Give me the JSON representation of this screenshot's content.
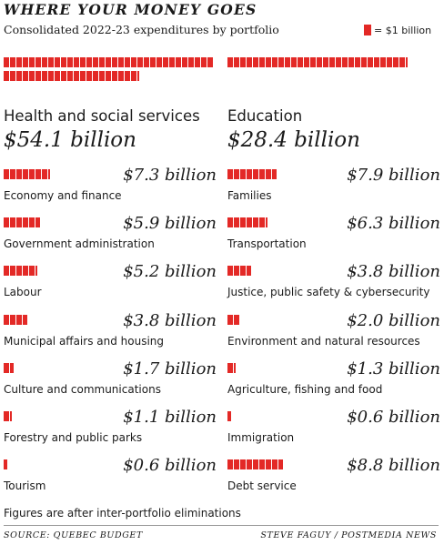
{
  "header": {
    "title": "WHERE YOUR MONEY GOES",
    "subtitle": "Consolidated 2022-23 expenditures by portfolio",
    "legend_label": "= $1 billion",
    "legend_color": "#e32926"
  },
  "chart_data": {
    "type": "bar",
    "unit": "$1 billion",
    "bar_color": "#e32926",
    "categories": [
      "Health and social services",
      "Education",
      "Economy and finance",
      "Families",
      "Government administration",
      "Transportation",
      "Labour",
      "Justice, public safety & cybersecurity",
      "Municipal affairs and housing",
      "Environment and natural resources",
      "Culture and communications",
      "Agriculture, fishing and food",
      "Forestry and public parks",
      "Immigration",
      "Tourism",
      "Debt service"
    ],
    "values": [
      54.1,
      28.4,
      7.3,
      7.9,
      5.9,
      6.3,
      5.2,
      3.8,
      3.8,
      2.0,
      1.7,
      1.3,
      1.1,
      0.6,
      0.6,
      8.8
    ],
    "value_labels": [
      "$54.1 billion",
      "$28.4 billion",
      "$7.3 billion",
      "$7.9 billion",
      "$5.9 billion",
      "$6.3 billion",
      "$5.2 billion",
      "$3.8 billion",
      "$3.8 billion",
      "$2.0 billion",
      "$1.7 billion",
      "$1.3 billion",
      "$1.1 billion",
      "$0.6 billion",
      "$0.6 billion",
      "$8.8 billion"
    ]
  },
  "footer": {
    "note": "Figures are after inter-portfolio eliminations",
    "source": "SOURCE: QUEBEC BUDGET",
    "credit": "STEVE FAGUY / POSTMEDIA NEWS"
  }
}
